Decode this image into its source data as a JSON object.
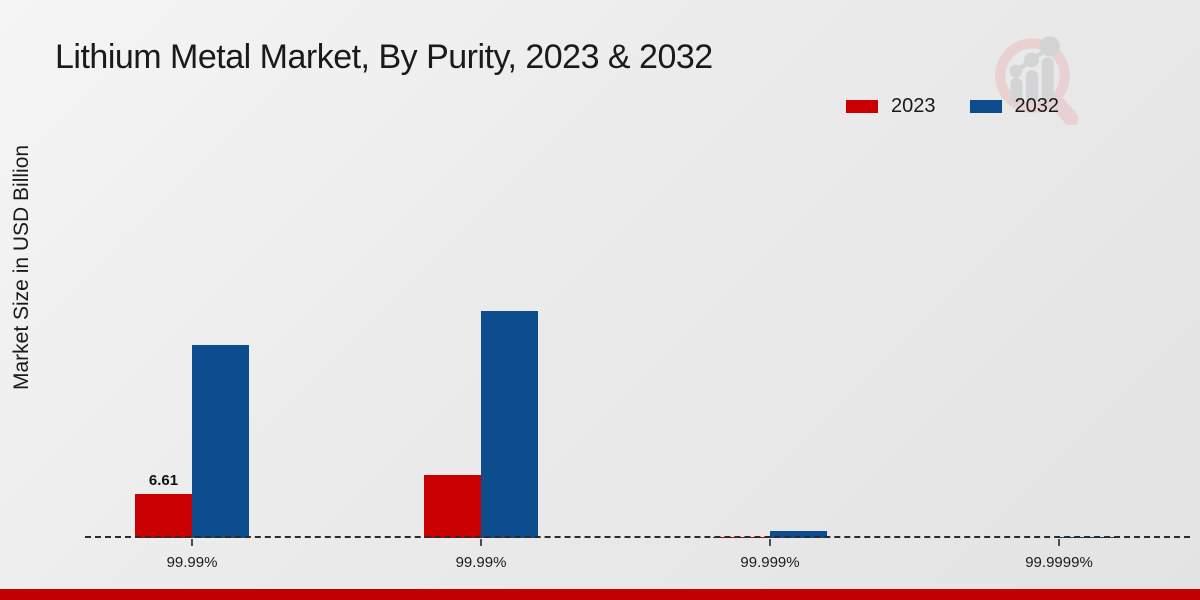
{
  "chart_data": {
    "type": "bar",
    "title": "Lithium Metal Market, By Purity, 2023 & 2032",
    "ylabel": "Market Size in USD Billion",
    "xlabel": "",
    "categories": [
      "99.99%",
      "99.99%",
      "99.999%",
      "99.9999%"
    ],
    "series": [
      {
        "name": "2023",
        "color": "#c80001",
        "values": [
          6.61,
          9.46,
          0.15,
          0.05
        ]
      },
      {
        "name": "2032",
        "color": "#0e4d8d",
        "values": [
          29.0,
          34.1,
          1.05,
          0.1
        ]
      }
    ],
    "bar_labels": [
      {
        "series_index": 0,
        "category_index": 0,
        "text": "6.61"
      }
    ],
    "ylim": [
      0,
      35
    ],
    "grid": false,
    "legend_position": "top-right",
    "x_axis_style": "dashed-line-with-ticks"
  },
  "colors": {
    "series_2023": "#c80001",
    "series_2032": "#0e4d8d",
    "bottom_strip": "#c00001",
    "axis_line": "#2b2b2b"
  },
  "logo": {
    "name": "magnifier-growth-chart-logo",
    "ring_color": "#e9d0d1",
    "glyph_color": "#d3d3d6"
  }
}
